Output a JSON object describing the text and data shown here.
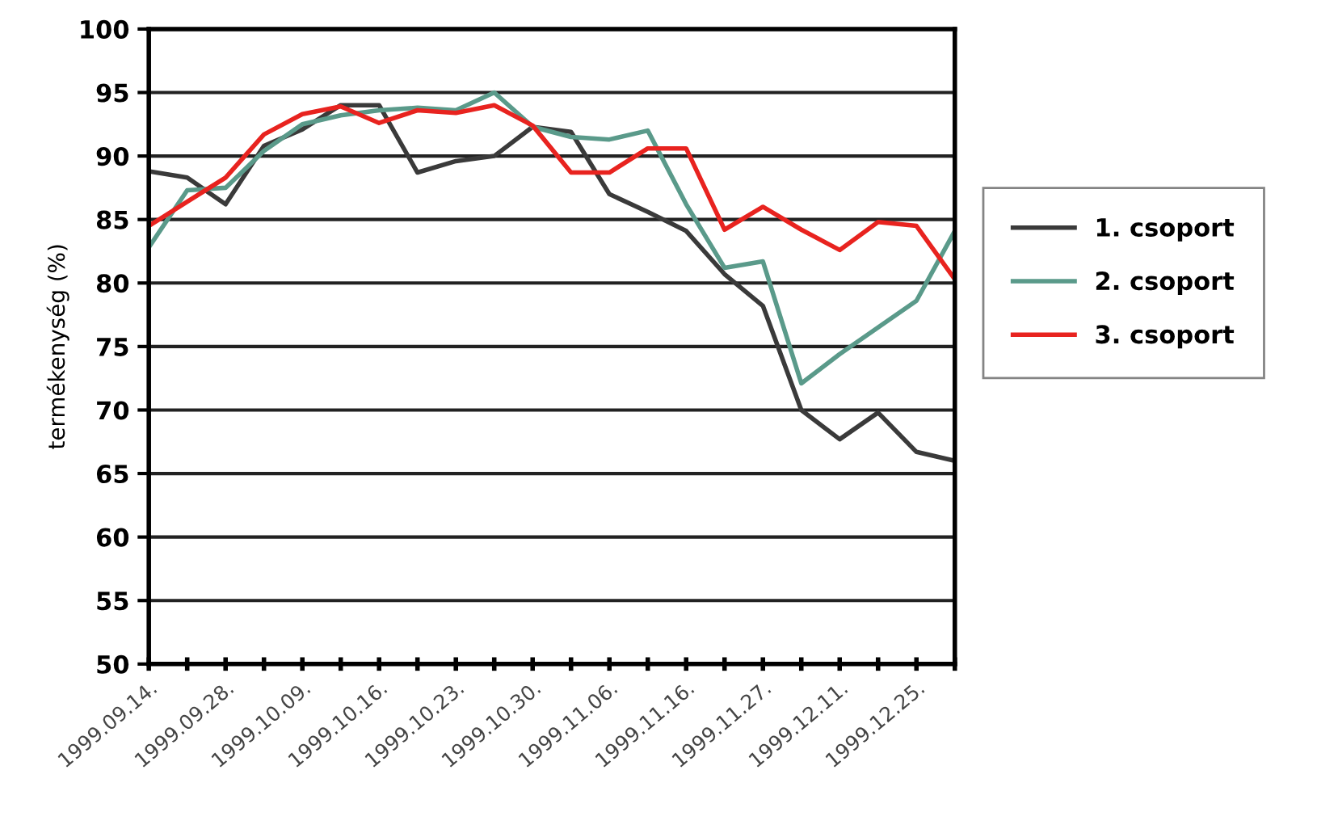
{
  "chart_data": {
    "type": "line",
    "ylabel": "termékenység (%)",
    "categories": [
      "1999.09.14.",
      null,
      "1999.09.28.",
      null,
      "1999.10.09.",
      null,
      "1999.10.16.",
      null,
      "1999.10.23.",
      null,
      "1999.10.30.",
      null,
      "1999.11.06.",
      null,
      "1999.11.16.",
      null,
      "1999.11.27.",
      null,
      "1999.12.11.",
      null,
      "1999.12.25.",
      null
    ],
    "series": [
      {
        "name": "1. csoport",
        "color": "#3a3a3a",
        "values": [
          88.8,
          88.3,
          86.2,
          90.8,
          92.1,
          94.0,
          94.0,
          88.7,
          89.6,
          90.0,
          92.3,
          91.9,
          87.0,
          85.6,
          84.1,
          80.7,
          78.2,
          70.0,
          67.7,
          69.8,
          66.7,
          66.0
        ]
      },
      {
        "name": "2. csoport",
        "color": "#5a9a8a",
        "values": [
          82.8,
          87.3,
          87.5,
          90.4,
          92.5,
          93.2,
          93.6,
          93.8,
          93.6,
          95.0,
          92.3,
          91.5,
          91.3,
          92.0,
          86.2,
          81.2,
          81.7,
          72.1,
          74.4,
          76.5,
          78.6,
          84.1
        ]
      },
      {
        "name": "3. csoport",
        "color": "#e8231f",
        "values": [
          84.5,
          86.4,
          88.3,
          91.7,
          93.3,
          93.9,
          92.6,
          93.6,
          93.4,
          94.0,
          92.4,
          88.7,
          88.7,
          90.6,
          90.6,
          84.2,
          86.0,
          84.2,
          82.6,
          84.8,
          84.5,
          80.3
        ]
      }
    ],
    "ylim": [
      50,
      100
    ],
    "yticks": [
      50,
      55,
      60,
      65,
      70,
      75,
      80,
      85,
      90,
      95,
      100
    ],
    "grid": "y",
    "legend": "right",
    "marker": "none",
    "line_style": "solid"
  }
}
